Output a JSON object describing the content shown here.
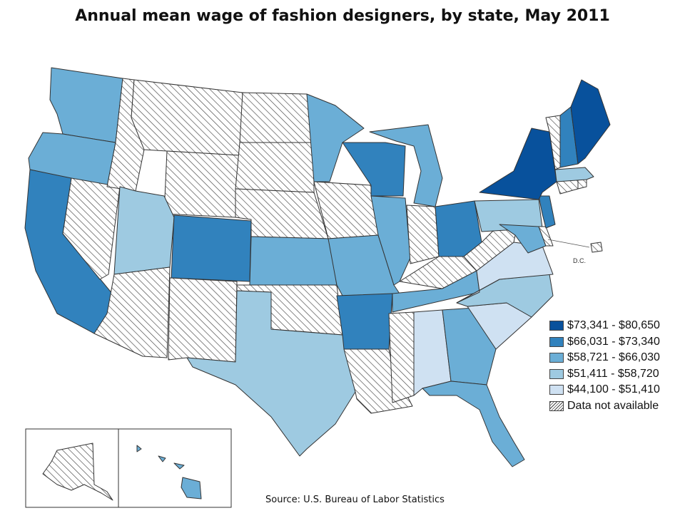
{
  "title": "Annual mean wage of fashion designers, by state, May 2011",
  "source": "Source:  U.S. Bureau of Labor Statistics",
  "dc_label": "D.C.",
  "colors": {
    "c1": "#08519c",
    "c2": "#3182bd",
    "c3": "#6baed6",
    "c4": "#9ecae1",
    "c5": "#cfe1f2",
    "na": "hatched"
  },
  "legend": [
    {
      "label": "$73,341 - $80,650",
      "class": "c1"
    },
    {
      "label": "$66,031 - $73,340",
      "class": "c2"
    },
    {
      "label": "$58,721 - $66,030",
      "class": "c3"
    },
    {
      "label": "$51,411 - $58,720",
      "class": "c4"
    },
    {
      "label": "$44,100 - $51,410",
      "class": "c5"
    },
    {
      "label": "Data not available",
      "class": "na"
    }
  ],
  "states": {
    "WA": "c3",
    "OR": "c3",
    "CA": "c2",
    "NV": "na",
    "ID": "na",
    "MT": "na",
    "WY": "na",
    "UT": "c4",
    "AZ": "na",
    "CO": "c2",
    "NM": "na",
    "ND": "na",
    "SD": "na",
    "NE": "na",
    "KS": "c3",
    "OK": "na",
    "TX": "c4",
    "MN": "c3",
    "IA": "na",
    "MO": "c3",
    "AR": "c2",
    "LA": "na",
    "WI": "c2",
    "IL": "c3",
    "MI": "c3",
    "IN": "na",
    "OH": "c2",
    "KY": "na",
    "TN": "c3",
    "MS": "na",
    "AL": "c5",
    "GA": "c3",
    "FL": "c3",
    "SC": "c5",
    "NC": "c4",
    "VA": "c5",
    "WV": "na",
    "MD": "c3",
    "DE": "na",
    "NJ": "c2",
    "PA": "c4",
    "NY": "c1",
    "CT": "na",
    "RI": "na",
    "MA": "c4",
    "VT": "na",
    "NH": "c2",
    "ME": "c1",
    "DC": "na",
    "AK": "na",
    "HI": "c3"
  }
}
